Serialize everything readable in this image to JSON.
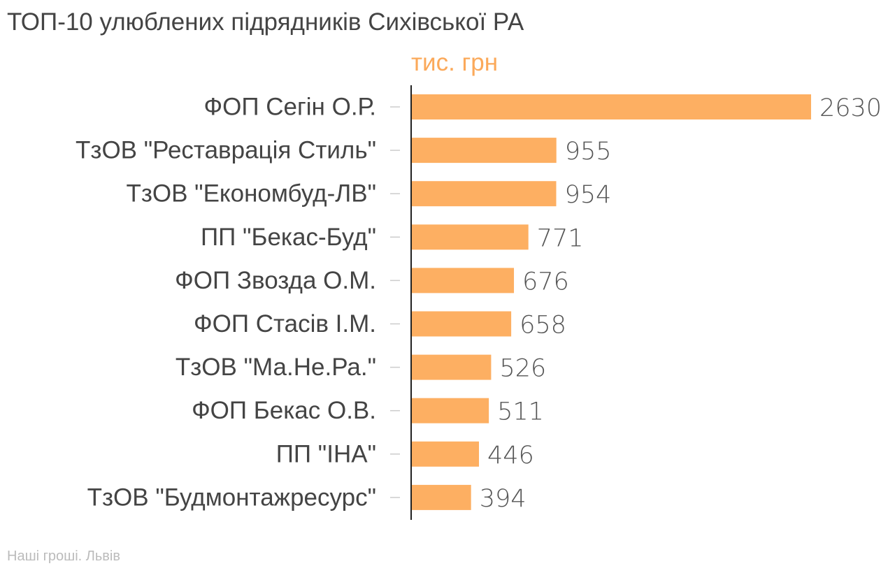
{
  "title": "ТОП-10 улюблених підрядників Сихівської РА",
  "footer": "Наші гроші. Львів",
  "colors": {
    "bar": "#FDAF62",
    "unit": "#FBA95A",
    "title": "#444444",
    "category": "#444444",
    "value": "#555555",
    "axis": "#222222",
    "tick": "#cccccc",
    "footer": "#bbbbbb"
  },
  "chart_data": {
    "type": "bar",
    "orientation": "horizontal",
    "unit_label": "тис. грн",
    "categories": [
      "ФОП Сегін О.Р.",
      "ТзОВ \"Реставрація Стиль\"",
      "ТзОВ \"Економбуд-ЛВ\"",
      "ПП \"Бекас-Буд\"",
      "ФОП Звозда О.М.",
      "ФОП Стасів І.М.",
      "ТзОВ \"Ма.Не.Ра.\"",
      "ФОП Бекас О.В.",
      "ПП \"ІНА\"",
      "ТзОВ \"Будмонтажресурс\""
    ],
    "values": [
      2630,
      955,
      954,
      771,
      676,
      658,
      526,
      511,
      446,
      394
    ],
    "xlim": [
      0,
      2630
    ],
    "grid": false,
    "legend": "none"
  }
}
